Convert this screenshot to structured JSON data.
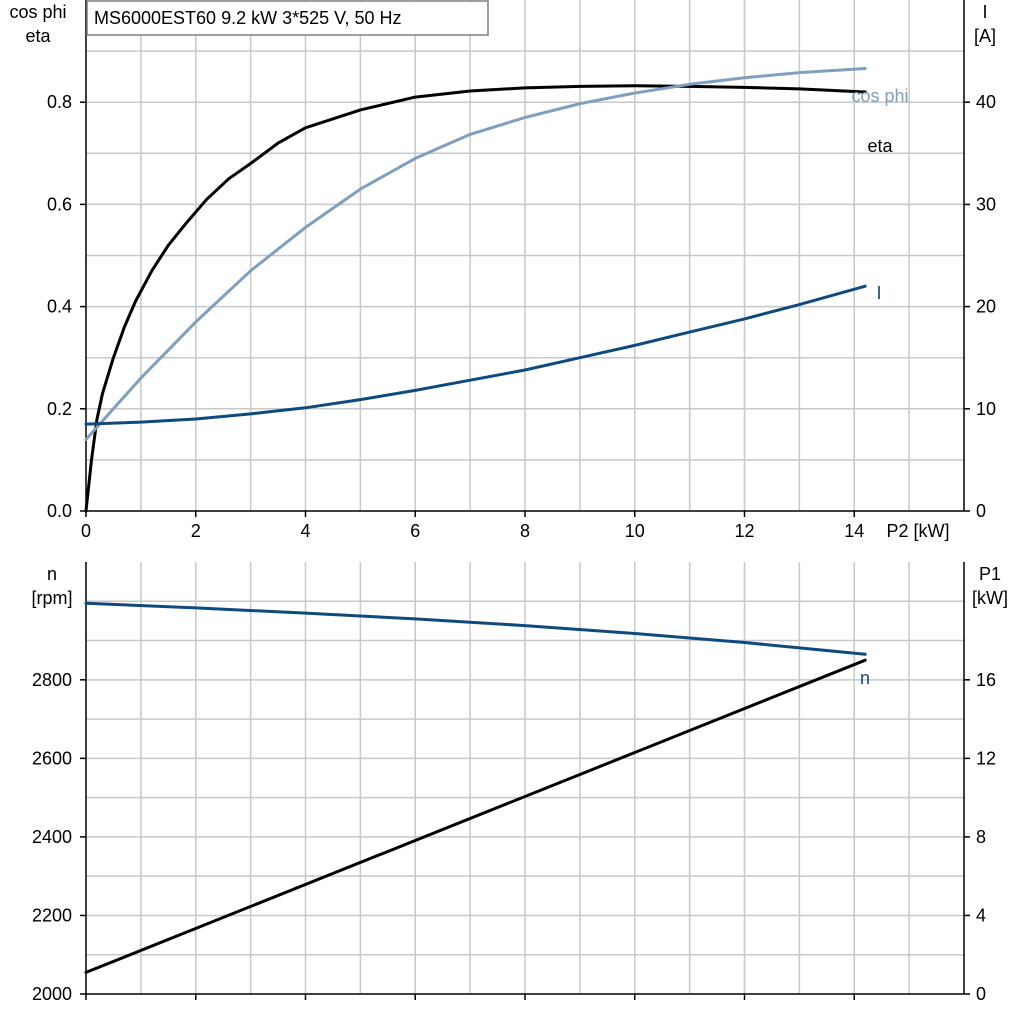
{
  "colors": {
    "background": "#ffffff",
    "grid": "#c8c8c8",
    "axis": "#000000",
    "eta": "#000000",
    "cosphi": "#7f9fbe",
    "current": "#0f4a7f",
    "speed": "#0f4a7f",
    "p1": "#000000"
  },
  "chart_data": [
    {
      "type": "line",
      "title": "MS6000EST60   9.2 kW   3*525 V, 50 Hz",
      "xlabel": "P2 [kW]",
      "x_ticks": [
        "0",
        "2",
        "4",
        "6",
        "8",
        "10",
        "12",
        "14"
      ],
      "xlim": [
        0,
        16
      ],
      "ylabel_left": [
        "cos phi",
        "eta"
      ],
      "ylim_left": [
        0,
        1.0
      ],
      "yticks_left": [
        "0.0",
        "0.2",
        "0.4",
        "0.6",
        "0.8"
      ],
      "ylabel_right": [
        "I",
        "[A]"
      ],
      "ylim_right": [
        0,
        50
      ],
      "yticks_right": [
        "0",
        "10",
        "20",
        "30",
        "40"
      ],
      "grid": true,
      "series": [
        {
          "name": "eta",
          "axis": "left",
          "x": [
            0,
            0.1,
            0.2,
            0.3,
            0.5,
            0.7,
            0.9,
            1.2,
            1.5,
            1.8,
            2.2,
            2.6,
            3,
            3.5,
            4,
            5,
            6,
            7,
            8,
            9,
            10,
            11,
            12,
            13,
            14.2
          ],
          "y": [
            0,
            0.1,
            0.18,
            0.23,
            0.3,
            0.36,
            0.41,
            0.47,
            0.52,
            0.56,
            0.61,
            0.65,
            0.68,
            0.72,
            0.75,
            0.785,
            0.81,
            0.822,
            0.828,
            0.831,
            0.832,
            0.831,
            0.829,
            0.826,
            0.82
          ]
        },
        {
          "name": "cos phi",
          "axis": "left",
          "x": [
            0,
            0.5,
            1,
            2,
            3,
            4,
            5,
            6,
            7,
            8,
            9,
            10,
            11,
            12,
            13,
            14.2
          ],
          "y": [
            0.14,
            0.2,
            0.26,
            0.37,
            0.47,
            0.555,
            0.63,
            0.69,
            0.737,
            0.77,
            0.797,
            0.818,
            0.835,
            0.848,
            0.858,
            0.866
          ]
        },
        {
          "name": "I",
          "axis": "right",
          "x": [
            0,
            1,
            2,
            3,
            4,
            5,
            6,
            7,
            8,
            9,
            10,
            11,
            12,
            13,
            14.2
          ],
          "y": [
            8.5,
            8.7,
            9.0,
            9.5,
            10.1,
            10.9,
            11.8,
            12.8,
            13.8,
            15.0,
            16.2,
            17.5,
            18.8,
            20.2,
            22.0
          ]
        }
      ],
      "labels": [
        "cos phi",
        "eta",
        "I"
      ]
    },
    {
      "type": "line",
      "xlim": [
        0,
        16
      ],
      "ylabel_left": [
        "n",
        "[rpm]"
      ],
      "ylim_left": [
        2000,
        3100
      ],
      "yticks_left": [
        "2000",
        "2200",
        "2400",
        "2600",
        "2800"
      ],
      "ylabel_right": [
        "P1",
        "[kW]"
      ],
      "ylim_right": [
        0,
        22
      ],
      "yticks_right": [
        "0",
        "4",
        "8",
        "12",
        "16"
      ],
      "grid": true,
      "series": [
        {
          "name": "n",
          "axis": "left",
          "x": [
            0,
            2,
            4,
            6,
            8,
            10,
            12,
            14.2
          ],
          "y": [
            2995,
            2983,
            2970,
            2955,
            2938,
            2918,
            2895,
            2865
          ]
        },
        {
          "name": "P1",
          "axis": "right",
          "x": [
            0,
            14.2
          ],
          "y": [
            1.1,
            17.0
          ]
        }
      ],
      "labels": [
        "n"
      ]
    }
  ]
}
